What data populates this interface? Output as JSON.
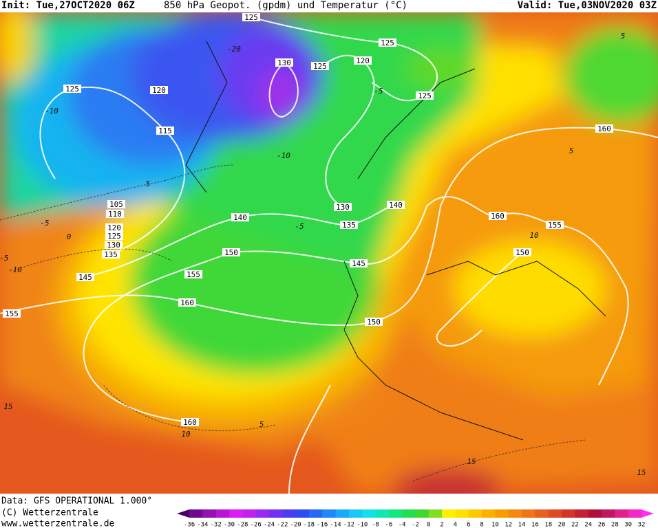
{
  "header": {
    "init": "Init: Tue,27OCT2020 06Z",
    "title": "850 hPa Geopot. (gpdm) und Temperatur (°C)",
    "valid": "Valid: Tue,03NOV2020 03Z"
  },
  "footer": {
    "data": "Data: GFS OPERATIONAL 1.000°",
    "copyright": "(C) Wetterzentrale",
    "url": "www.wetterzentrale.de"
  },
  "colorbar": {
    "ticks": [
      -36,
      -34,
      -32,
      -30,
      -28,
      -26,
      -24,
      -22,
      -20,
      -18,
      -16,
      -14,
      -12,
      -10,
      -8,
      -6,
      -4,
      -2,
      0,
      2,
      4,
      6,
      8,
      10,
      12,
      14,
      16,
      18,
      20,
      22,
      24,
      26,
      28,
      30,
      32
    ],
    "colors": [
      "#4b0063",
      "#6e0a8c",
      "#9410b0",
      "#b816d4",
      "#dc1cf4",
      "#c020f0",
      "#9a28f0",
      "#7430f0",
      "#4e3af0",
      "#2a4cf0",
      "#2468f4",
      "#1e88f8",
      "#1aa8fa",
      "#18c8f8",
      "#14e0e8",
      "#12e6b4",
      "#16e680",
      "#20e050",
      "#40d830",
      "#80e020",
      "#fff000",
      "#ffe000",
      "#ffc800",
      "#fcb000",
      "#f89c00",
      "#f48810",
      "#f07418",
      "#e86020",
      "#e04a24",
      "#d43428",
      "#c42030",
      "#b01038",
      "#c01860",
      "#e0208c",
      "#f428c4",
      "#ff30f0"
    ]
  },
  "map": {
    "geopotential_labels": [
      125,
      125,
      120,
      130,
      125,
      125,
      120,
      125,
      160,
      115,
      105,
      140,
      130,
      110,
      160,
      140,
      135,
      155,
      120,
      125,
      130,
      150,
      150,
      135,
      145,
      155,
      145,
      160,
      155,
      150,
      160
    ],
    "temperature_labels": [
      -20,
      -10,
      -5,
      -10,
      5,
      -5,
      0,
      -5,
      -10,
      5,
      -5,
      10,
      5,
      15,
      10,
      5,
      15,
      15
    ]
  }
}
